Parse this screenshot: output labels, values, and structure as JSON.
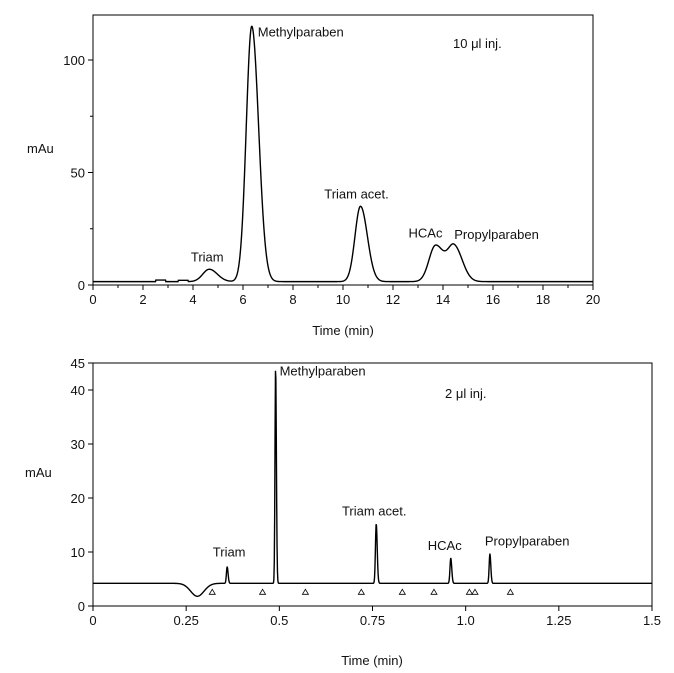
{
  "chart_data": [
    {
      "type": "line",
      "title": "",
      "annotation": "10 μl inj.",
      "xlabel": "Time (min)",
      "ylabel": "mAu",
      "xlim": [
        0,
        20
      ],
      "ylim": [
        0,
        120
      ],
      "x_ticks": [
        0,
        2,
        4,
        6,
        8,
        10,
        12,
        14,
        16,
        18,
        20
      ],
      "x_tick_labels": [
        "0",
        "2",
        "4",
        "6",
        "8",
        "10",
        "12",
        "14",
        "16",
        "18",
        "20"
      ],
      "y_ticks": [
        0,
        50,
        100
      ],
      "y_tick_labels": [
        "0",
        "50",
        "100"
      ],
      "baseline": 1.5,
      "peaks": [
        {
          "name": "Triam",
          "x": 4.65,
          "y": 7
        },
        {
          "name": "Methylparaben",
          "x": 6.35,
          "y": 115
        },
        {
          "name": "Triam acet.",
          "x": 10.7,
          "y": 35
        },
        {
          "name": "HCAc",
          "x": 13.7,
          "y": 17.5
        },
        {
          "name": "Propylparaben",
          "x": 14.45,
          "y": 17
        }
      ],
      "minor_features": [
        {
          "x": 2.7,
          "y": 2.2
        },
        {
          "x": 3.6,
          "y": 2.1
        }
      ]
    },
    {
      "type": "line",
      "title": "",
      "annotation": "2 μl inj.",
      "xlabel": "Time (min)",
      "ylabel": "mAu",
      "xlim": [
        0,
        1.5
      ],
      "ylim": [
        0,
        45
      ],
      "x_ticks": [
        0,
        0.25,
        0.5,
        0.75,
        1.0,
        1.25,
        1.5
      ],
      "x_tick_labels": [
        "0",
        "0.25",
        "0.5",
        "0.75",
        "1.0",
        "1.25",
        "1.5"
      ],
      "y_ticks": [
        0,
        10,
        20,
        30,
        40,
        45
      ],
      "y_tick_labels": [
        "0",
        "10",
        "20",
        "30",
        "40",
        "45"
      ],
      "baseline": 4.2,
      "dip": {
        "x": 0.28,
        "y": 1.8
      },
      "peaks": [
        {
          "name": "Triam",
          "x": 0.36,
          "y": 7.3
        },
        {
          "name": "Methylparaben",
          "x": 0.49,
          "y": 44.5
        },
        {
          "name": "Triam acet.",
          "x": 0.76,
          "y": 15.3
        },
        {
          "name": "HCAc",
          "x": 0.96,
          "y": 8.9
        },
        {
          "name": "Propylparaben",
          "x": 1.065,
          "y": 9.7
        }
      ],
      "markers": [
        0.32,
        0.455,
        0.57,
        0.72,
        0.83,
        0.915,
        1.01,
        1.025,
        1.12
      ]
    }
  ]
}
